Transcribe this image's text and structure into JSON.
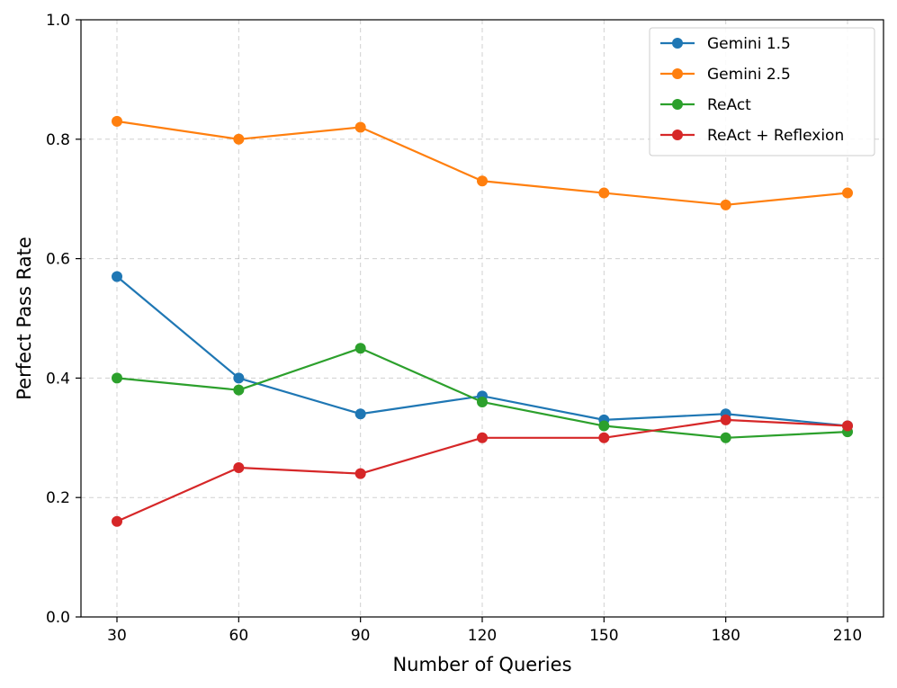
{
  "chart_data": {
    "type": "line",
    "title": "",
    "xlabel": "Number of Queries",
    "ylabel": "Perfect Pass Rate",
    "x": [
      30,
      60,
      90,
      120,
      150,
      180,
      210
    ],
    "xticks": [
      "30",
      "60",
      "90",
      "120",
      "150",
      "180",
      "210"
    ],
    "ylim": [
      0.0,
      1.0
    ],
    "yticks": [
      "0.0",
      "0.2",
      "0.4",
      "0.6",
      "0.8",
      "1.0"
    ],
    "grid": true,
    "legend_position": "top-right",
    "series": [
      {
        "name": "Gemini 1.5",
        "color": "#1f77b4",
        "values": [
          0.57,
          0.4,
          0.34,
          0.37,
          0.33,
          0.34,
          0.32
        ]
      },
      {
        "name": "Gemini 2.5",
        "color": "#ff7f0e",
        "values": [
          0.83,
          0.8,
          0.82,
          0.73,
          0.71,
          0.69,
          0.71
        ]
      },
      {
        "name": "ReAct",
        "color": "#2ca02c",
        "values": [
          0.4,
          0.38,
          0.45,
          0.36,
          0.32,
          0.3,
          0.31
        ]
      },
      {
        "name": "ReAct + Reflexion",
        "color": "#d62728",
        "values": [
          0.16,
          0.25,
          0.24,
          0.3,
          0.3,
          0.33,
          0.32
        ]
      }
    ]
  }
}
